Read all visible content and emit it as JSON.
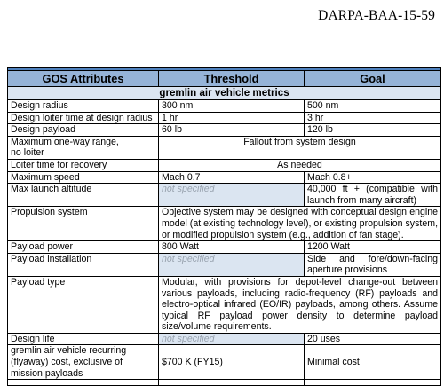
{
  "doc_id": "DARPA-BAA-15-59",
  "headers": {
    "attr": "GOS Attributes",
    "threshold": "Threshold",
    "goal": "Goal"
  },
  "section": "gremlin air vehicle metrics",
  "rows": {
    "design_radius": {
      "attr": "Design radius",
      "threshold": "300 nm",
      "goal": "500 nm"
    },
    "loiter_time": {
      "attr": "Design loiter time at design radius",
      "threshold": "1 hr",
      "goal": "3 hr"
    },
    "design_payload": {
      "attr": "Design payload",
      "threshold": "60 lb",
      "goal": "120 lb"
    },
    "max_range": {
      "attr_line1": "Maximum one-way range,",
      "attr_line2": "no loiter",
      "merged": "Fallout from system design"
    },
    "loiter_recovery": {
      "attr": "Loiter time for recovery",
      "merged": "As needed"
    },
    "max_speed": {
      "attr": "Maximum speed",
      "threshold": "Mach 0.7",
      "goal": "Mach 0.8+"
    },
    "launch_altitude": {
      "attr": "Max launch altitude",
      "threshold": "not specified",
      "goal": "40,000 ft + (compatible with launch from many aircraft)"
    },
    "propulsion": {
      "attr": "Propulsion system",
      "merged": "Objective system may be designed with conceptual design engine model (at existing technology level), or existing propulsion system, or modified propulsion system (e.g., addition of fan stage)."
    },
    "payload_power": {
      "attr": "Payload power",
      "threshold": "800 Watt",
      "goal": "1200 Watt"
    },
    "payload_install": {
      "attr": "Payload installation",
      "threshold": "not specified",
      "goal": "Side and fore/down-facing aperture provisions"
    },
    "payload_type": {
      "attr": "Payload type",
      "merged": "Modular, with provisions for depot-level change-out between various payloads, including radio-frequency (RF) payloads and electro-optical infrared (EO/IR) payloads, among others. Assume typical RF payload power density to determine payload size/volume requirements."
    },
    "design_life": {
      "attr": "Design life",
      "threshold": "not specified",
      "goal": "20 uses"
    },
    "recurring_cost": {
      "attr": "gremlin air vehicle recurring (flyaway) cost, exclusive of mission payloads",
      "threshold": "$700 K (FY15)",
      "goal": "Minimal cost"
    }
  }
}
